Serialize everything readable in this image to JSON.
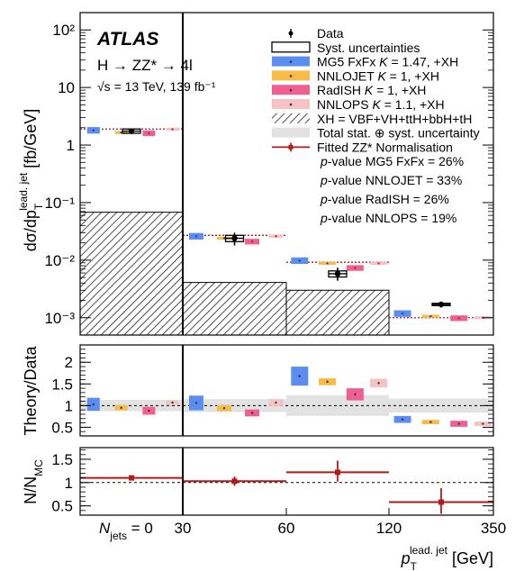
{
  "chart_data": {
    "type": "histogram",
    "experiment": "ATLAS",
    "process": "H → ZZ* → 4l",
    "energy_lumi": "√s = 13 TeV, 139 fb⁻¹",
    "bins_gev": [
      "0",
      "30",
      "60",
      "120",
      "350"
    ],
    "njets0_label": "N",
    "njets0_sub": "jets",
    "njets0_suffix": " = 0",
    "xlabel_main": "p",
    "xlabel_sub": "T",
    "xlabel_sup": "lead. jet",
    "xlabel_unit": " [GeV]",
    "panels": {
      "main": {
        "ylabel": "dσ/dp",
        "ylabel_sub": "T",
        "ylabel_sup": "lead. jet",
        "ylabel_unit": " [fb/GeV]",
        "yscale": "log",
        "ylim": [
          0.0005,
          200
        ],
        "yticks": [
          {
            "v": 0.001,
            "label": "10⁻³"
          },
          {
            "v": 0.01,
            "label": "10⁻²"
          },
          {
            "v": 0.1,
            "label": "10⁻¹"
          },
          {
            "v": 1,
            "label": "1"
          },
          {
            "v": 10,
            "label": "10"
          },
          {
            "v": 100,
            "label": "10²"
          }
        ],
        "data": [
          {
            "bin": 0,
            "y": 1.75,
            "err_lo": 1.55,
            "err_hi": 1.95
          },
          {
            "bin": 1,
            "y": 0.024,
            "err_lo": 0.018,
            "err_hi": 0.03
          },
          {
            "bin": 2,
            "y": 0.0058,
            "err_lo": 0.0044,
            "err_hi": 0.0074
          },
          {
            "bin": 3,
            "y": 0.0017,
            "err_lo": 0.0015,
            "err_hi": 0.0019
          }
        ],
        "syst_box": [
          {
            "bin": 0,
            "lo": 1.6,
            "hi": 1.9
          },
          {
            "bin": 1,
            "lo": 0.021,
            "hi": 0.027
          },
          {
            "bin": 2,
            "lo": 0.0051,
            "hi": 0.0065
          },
          {
            "bin": 3,
            "lo": 0.00162,
            "hi": 0.00178
          }
        ],
        "predictions": [
          {
            "name": "MG5 FxFx",
            "k": "K = 1.47, +XH",
            "color": "#5b8ef0",
            "values": [
              1.8,
              0.026,
              0.0098,
              0.00118
            ],
            "rel_unc": 0.14
          },
          {
            "name": "NNLOJET",
            "k": "K = 1, +XH",
            "color": "#f9bb45",
            "values": [
              1.65,
              0.024,
              0.0088,
              0.00106
            ],
            "rel_unc": 0.06
          },
          {
            "name": "RadISH",
            "k": "K = 1, +XH",
            "color": "#ef5f8f",
            "values": [
              1.6,
              0.021,
              0.0073,
              0.00098
            ],
            "rel_unc": 0.12
          },
          {
            "name": "NNLOPS",
            "k": "K = 1.1, +XH",
            "color": "#f7c2c4",
            "values": [
              1.88,
              0.026,
              0.0088,
              0.001
            ],
            "rel_unc": 0.06
          }
        ],
        "xh": [
          0.068,
          0.0041,
          0.003,
          0.0005
        ],
        "fitted_zz_line": [
          1.9,
          0.027,
          0.0092,
          0.001
        ]
      },
      "ratio": {
        "ylabel": "Theory/Data",
        "ylim": [
          0.3,
          2.4
        ],
        "yticks": [
          {
            "v": 0.5,
            "label": "0.5"
          },
          {
            "v": 1,
            "label": "1"
          },
          {
            "v": 1.5,
            "label": "1.5"
          },
          {
            "v": 2,
            "label": "2"
          }
        ],
        "band": [
          [
            0.87,
            1.13
          ],
          [
            0.85,
            1.15
          ],
          [
            0.76,
            1.24
          ],
          [
            0.84,
            1.16
          ]
        ],
        "values": [
          [
            1.03,
            0.95,
            0.88,
            1.07
          ],
          [
            1.06,
            0.94,
            0.83,
            1.07
          ],
          [
            1.68,
            1.55,
            1.26,
            1.52
          ],
          [
            0.68,
            0.62,
            0.58,
            0.58
          ]
        ],
        "unc": [
          [
            0.15,
            0.06,
            0.09,
            0.05
          ],
          [
            0.17,
            0.07,
            0.08,
            0.08
          ],
          [
            0.22,
            0.08,
            0.14,
            0.1
          ],
          [
            0.08,
            0.05,
            0.07,
            0.05
          ]
        ]
      },
      "norm": {
        "ylabel": "N/N",
        "ylabel_sub": "MC",
        "ylim": [
          0.3,
          1.75
        ],
        "yticks": [
          {
            "v": 0.5,
            "label": "0.5"
          },
          {
            "v": 1,
            "label": "1"
          },
          {
            "v": 1.5,
            "label": "1.5"
          }
        ],
        "points": [
          {
            "bin": 0,
            "y": 1.1,
            "err_lo": 0.05,
            "err_hi": 0.05
          },
          {
            "bin": 1,
            "y": 1.03,
            "err_lo": 0.1,
            "err_hi": 0.1
          },
          {
            "bin": 2,
            "y": 1.22,
            "err_lo": 0.2,
            "err_hi": 0.25
          },
          {
            "bin": 3,
            "y": 0.58,
            "err_lo": 0.25,
            "err_hi": 0.3
          }
        ]
      }
    },
    "legend": [
      {
        "label": "Data",
        "kind": "data"
      },
      {
        "label": "Syst. uncertainties",
        "kind": "syst"
      },
      {
        "label": "MG5 FxFx ",
        "italic": "K",
        "rest": " = 1.47, +XH",
        "kind": "box",
        "color": "#5b8ef0"
      },
      {
        "label": "NNLOJET ",
        "italic": "K",
        "rest": " = 1, +XH",
        "kind": "box",
        "color": "#f9bb45"
      },
      {
        "label": "RadISH ",
        "italic": "K",
        "rest": " = 1, +XH",
        "kind": "box",
        "color": "#ef5f8f"
      },
      {
        "label": "NNLOPS ",
        "italic": "K",
        "rest": " = 1.1, +XH",
        "kind": "box",
        "color": "#f7c2c4"
      },
      {
        "label": "XH = VBF+VH+ttH+bbH+tH",
        "kind": "hatch"
      },
      {
        "label": "Total stat. ⊕ syst. uncertainty",
        "kind": "grey"
      },
      {
        "label": "Fitted ZZ* Normalisation",
        "kind": "fitted"
      }
    ],
    "pvalues": [
      {
        "label": "-value MG5 FxFx = 26%"
      },
      {
        "label": "-value NNLOJET = 33%"
      },
      {
        "label": "-value RadISH = 26%"
      },
      {
        "label": "-value NNLOPS = 19%"
      }
    ],
    "pvalue_prefix": "p",
    "colors": {
      "data": "#000000",
      "fitted": "#b21b1b",
      "grey_band": "#e2e2e2"
    }
  }
}
